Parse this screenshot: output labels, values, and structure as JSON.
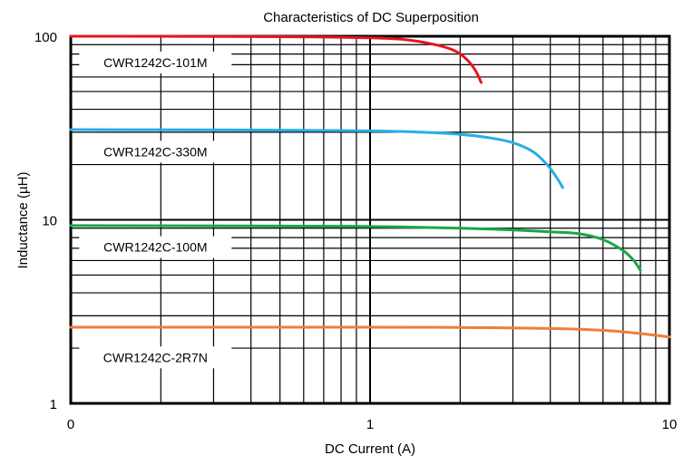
{
  "chart_data": {
    "type": "line",
    "title": "Characteristics of DC Superposition",
    "xlabel": "DC Current (A)",
    "ylabel": "Inductance (µH)",
    "x_scale": "log",
    "y_scale": "log",
    "xlim": [
      0.1,
      10
    ],
    "ylim": [
      1,
      100
    ],
    "x_tick_labels": [
      "0",
      "1",
      "10"
    ],
    "y_tick_labels": [
      "1",
      "10",
      "100"
    ],
    "grid": true,
    "series": [
      {
        "name": "CWR1242C-101M",
        "color": "#e8141b",
        "points": [
          [
            0.1,
            100
          ],
          [
            0.5,
            99.5
          ],
          [
            1.0,
            98
          ],
          [
            1.3,
            96
          ],
          [
            1.6,
            91
          ],
          [
            1.9,
            84
          ],
          [
            2.1,
            75
          ],
          [
            2.25,
            65
          ],
          [
            2.35,
            56
          ]
        ]
      },
      {
        "name": "CWR1242C-330M",
        "color": "#27aee5",
        "points": [
          [
            0.1,
            31
          ],
          [
            0.5,
            30.8
          ],
          [
            1.0,
            30.5
          ],
          [
            1.5,
            30
          ],
          [
            2.0,
            29.2
          ],
          [
            2.5,
            28
          ],
          [
            3.0,
            26.3
          ],
          [
            3.5,
            23.5
          ],
          [
            3.9,
            20
          ],
          [
            4.2,
            17
          ],
          [
            4.4,
            15
          ]
        ]
      },
      {
        "name": "CWR1242C-100M",
        "color": "#1aa64a",
        "points": [
          [
            0.1,
            9.3
          ],
          [
            0.5,
            9.25
          ],
          [
            1.0,
            9.2
          ],
          [
            2.0,
            9.0
          ],
          [
            3.0,
            8.8
          ],
          [
            4.0,
            8.6
          ],
          [
            5.0,
            8.4
          ],
          [
            6.0,
            7.8
          ],
          [
            7.0,
            6.8
          ],
          [
            7.6,
            6.0
          ],
          [
            8.0,
            5.3
          ]
        ]
      },
      {
        "name": "CWR1242C-2R7N",
        "color": "#f07d3c",
        "points": [
          [
            0.1,
            2.6
          ],
          [
            1.0,
            2.6
          ],
          [
            2.0,
            2.59
          ],
          [
            4.0,
            2.56
          ],
          [
            6.0,
            2.5
          ],
          [
            8.0,
            2.4
          ],
          [
            10.0,
            2.3
          ]
        ]
      }
    ]
  }
}
